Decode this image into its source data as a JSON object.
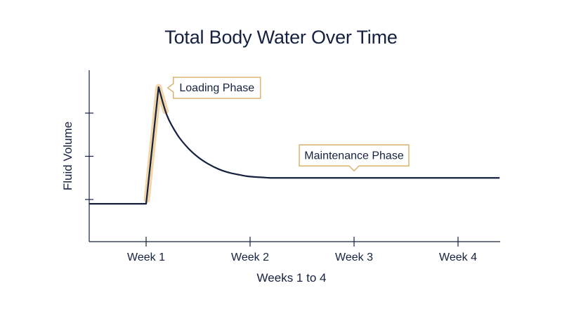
{
  "chart_data": {
    "type": "line",
    "title": "Total Body Water Over Time",
    "xlabel": "Weeks 1 to 4",
    "ylabel": "Fluid Volume",
    "categories": [
      "Week 1",
      "Week 2",
      "Week 3",
      "Week 4"
    ],
    "y_tick_count": 3,
    "grid": false,
    "legend": "none",
    "series": [
      {
        "x": [
          0.45,
          1.0,
          1.12,
          1.2,
          1.3,
          1.4,
          1.5,
          1.6,
          1.7,
          1.8,
          1.9,
          2.0,
          2.2,
          3.0,
          4.0,
          4.4
        ],
        "y": [
          0.9,
          0.9,
          3.6,
          2.95,
          2.5,
          2.2,
          1.98,
          1.82,
          1.7,
          1.62,
          1.57,
          1.53,
          1.5,
          1.5,
          1.5,
          1.5
        ]
      }
    ],
    "annotations": [
      {
        "text": "Loading Phase",
        "x": 1.12,
        "y": 3.6
      },
      {
        "text": "Maintenance Phase",
        "x": 3.0,
        "y": 1.5
      }
    ],
    "colors": {
      "line": "#15213f",
      "highlight": "#f1d6a9",
      "callout_border": "#d7b06a"
    }
  }
}
